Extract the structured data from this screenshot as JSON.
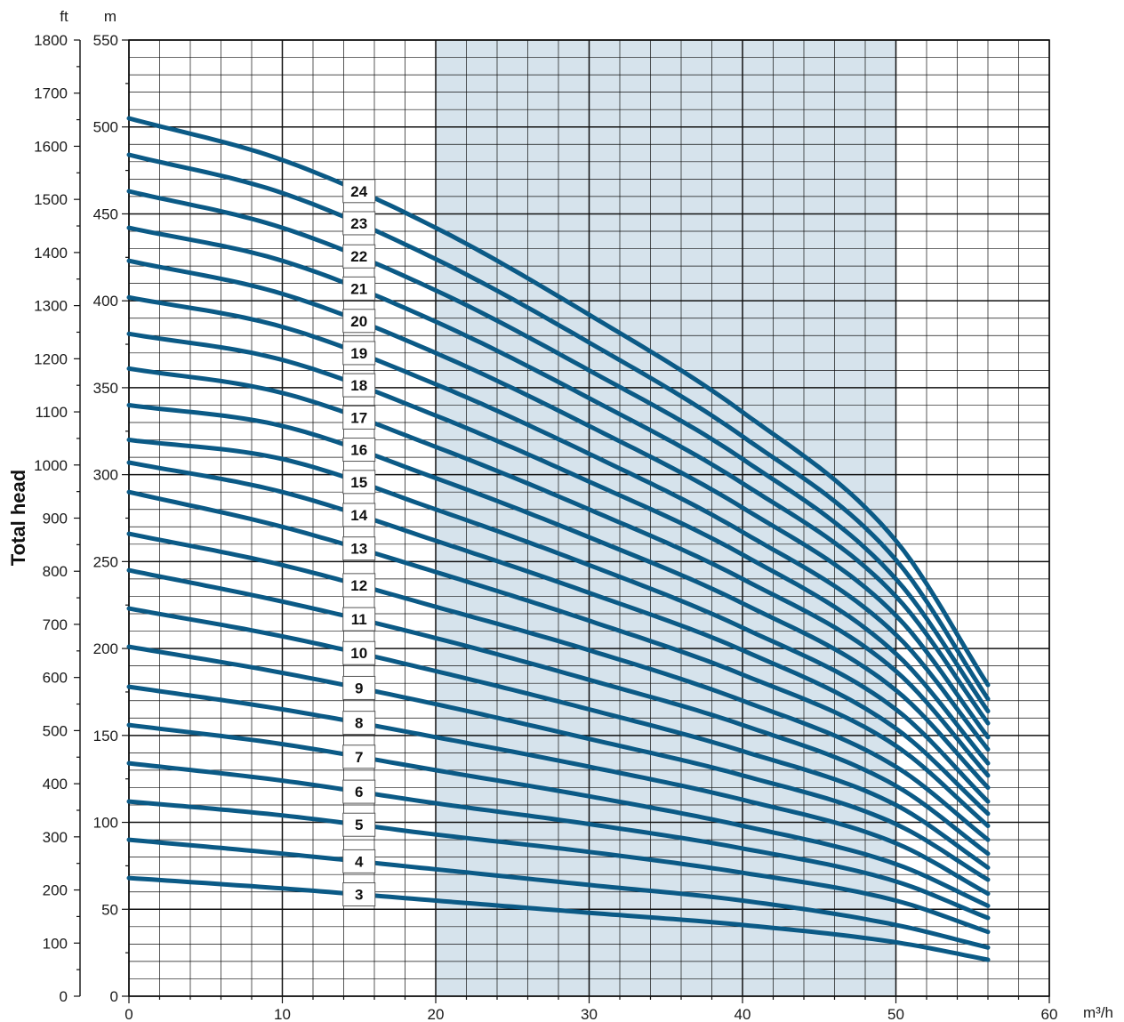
{
  "chart_data": {
    "type": "line",
    "ylabel": "Total head",
    "ylabel_left_unit": "ft",
    "ylabel_right_unit": "m",
    "xlabel_unit": "m³/h",
    "xlim": [
      0,
      60
    ],
    "ylim_m": [
      0,
      550
    ],
    "ylim_ft": [
      0,
      1800
    ],
    "x_ticks": [
      "0",
      "10",
      "20",
      "30",
      "40",
      "50",
      "60"
    ],
    "y_ticks_m": [
      "0",
      "50",
      "100",
      "150",
      "200",
      "250",
      "300",
      "350",
      "400",
      "450",
      "500",
      "550"
    ],
    "y_ticks_ft": [
      "0",
      "100",
      "200",
      "300",
      "400",
      "500",
      "600",
      "700",
      "800",
      "900",
      "1000",
      "1100",
      "1200",
      "1300",
      "1400",
      "1500",
      "1600",
      "1700",
      "1800"
    ],
    "grid": true,
    "highlight_band": {
      "x_from": 20,
      "x_to": 50,
      "color": "#d6e3ec"
    },
    "line_color": "#0b5a86",
    "label_x": 15,
    "series": [
      {
        "name": "3",
        "x": [
          0,
          10,
          20,
          30,
          40,
          50,
          56
        ],
        "y": [
          68,
          62,
          55,
          48,
          41,
          31,
          21
        ]
      },
      {
        "name": "4",
        "x": [
          0,
          10,
          20,
          30,
          40,
          50,
          56
        ],
        "y": [
          90,
          82,
          73,
          64,
          55,
          41,
          28
        ]
      },
      {
        "name": "5",
        "x": [
          0,
          10,
          20,
          30,
          40,
          50,
          56
        ],
        "y": [
          112,
          104,
          93,
          83,
          71,
          55,
          37
        ]
      },
      {
        "name": "6",
        "x": [
          0,
          10,
          20,
          30,
          40,
          50,
          56
        ],
        "y": [
          134,
          124,
          111,
          99,
          85,
          66,
          45
        ]
      },
      {
        "name": "7",
        "x": [
          0,
          10,
          20,
          30,
          40,
          50,
          56
        ],
        "y": [
          156,
          145,
          130,
          115,
          98,
          76,
          52
        ]
      },
      {
        "name": "8",
        "x": [
          0,
          10,
          20,
          30,
          40,
          50,
          56
        ],
        "y": [
          178,
          165,
          149,
          132,
          113,
          88,
          59
        ]
      },
      {
        "name": "9",
        "x": [
          0,
          10,
          20,
          30,
          40,
          50,
          56
        ],
        "y": [
          201,
          186,
          168,
          148,
          127,
          99,
          67
        ]
      },
      {
        "name": "10",
        "x": [
          0,
          10,
          20,
          30,
          40,
          50,
          56
        ],
        "y": [
          223,
          207,
          187,
          165,
          141,
          110,
          74
        ]
      },
      {
        "name": "11",
        "x": [
          0,
          10,
          20,
          30,
          40,
          50,
          56
        ],
        "y": [
          245,
          227,
          206,
          182,
          156,
          121,
          82
        ]
      },
      {
        "name": "12",
        "x": [
          0,
          10,
          20,
          30,
          40,
          50,
          56
        ],
        "y": [
          266,
          248,
          224,
          199,
          170,
          132,
          90
        ]
      },
      {
        "name": "13",
        "x": [
          0,
          10,
          20,
          30,
          40,
          50,
          56
        ],
        "y": [
          290,
          270,
          244,
          216,
          185,
          144,
          98
        ]
      },
      {
        "name": "14",
        "x": [
          0,
          10,
          20,
          30,
          40,
          50,
          56
        ],
        "y": [
          307,
          290,
          262,
          232,
          199,
          154,
          105
        ]
      },
      {
        "name": "15",
        "x": [
          0,
          10,
          20,
          30,
          40,
          50,
          56
        ],
        "y": [
          320,
          309,
          280,
          248,
          212,
          165,
          112
        ]
      },
      {
        "name": "16",
        "x": [
          0,
          10,
          20,
          30,
          40,
          50,
          56
        ],
        "y": [
          340,
          328,
          298,
          264,
          226,
          176,
          120
        ]
      },
      {
        "name": "17",
        "x": [
          0,
          10,
          20,
          30,
          40,
          50,
          56
        ],
        "y": [
          361,
          347,
          316,
          280,
          240,
          187,
          127
        ]
      },
      {
        "name": "18",
        "x": [
          0,
          10,
          20,
          30,
          40,
          50,
          56
        ],
        "y": [
          381,
          366,
          334,
          296,
          254,
          197,
          134
        ]
      },
      {
        "name": "19",
        "x": [
          0,
          10,
          20,
          30,
          40,
          50,
          56
        ],
        "y": [
          402,
          385,
          352,
          312,
          267,
          208,
          142
        ]
      },
      {
        "name": "20",
        "x": [
          0,
          10,
          20,
          30,
          40,
          50,
          56
        ],
        "y": [
          423,
          404,
          370,
          328,
          281,
          219,
          149
        ]
      },
      {
        "name": "21",
        "x": [
          0,
          10,
          20,
          30,
          40,
          50,
          56
        ],
        "y": [
          442,
          423,
          388,
          344,
          295,
          230,
          157
        ]
      },
      {
        "name": "22",
        "x": [
          0,
          10,
          20,
          30,
          40,
          50,
          56
        ],
        "y": [
          463,
          442,
          406,
          360,
          309,
          240,
          164
        ]
      },
      {
        "name": "23",
        "x": [
          0,
          10,
          20,
          30,
          40,
          50,
          56
        ],
        "y": [
          484,
          462,
          424,
          376,
          322,
          251,
          171
        ]
      },
      {
        "name": "24",
        "x": [
          0,
          10,
          20,
          30,
          40,
          50,
          56
        ],
        "y": [
          505,
          481,
          442,
          392,
          336,
          262,
          179
        ]
      }
    ]
  }
}
